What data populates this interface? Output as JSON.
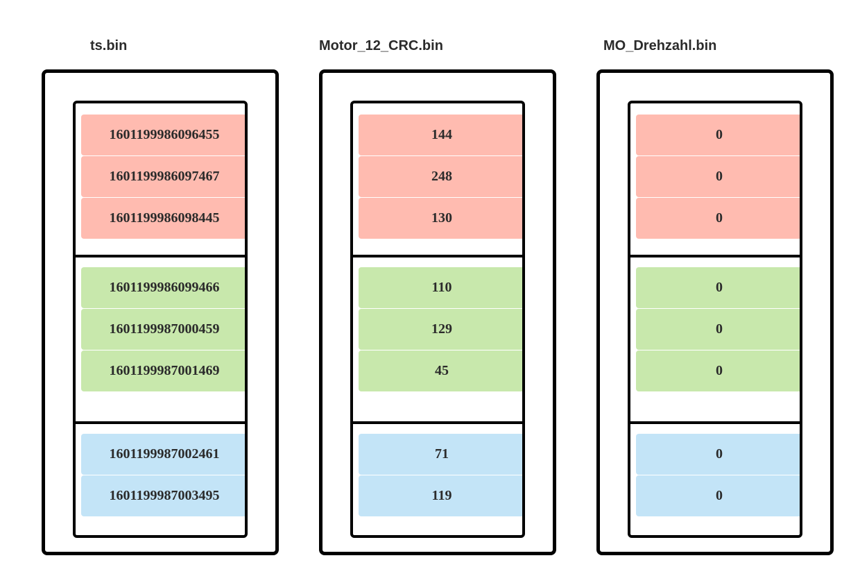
{
  "colors": {
    "red": "#ffbbb0",
    "green": "#c8e8ac",
    "blue": "#c3e4f7"
  },
  "files": [
    {
      "name": "ts.bin",
      "groups": [
        [
          "1601199986096455",
          "1601199986097467",
          "1601199986098445"
        ],
        [
          "1601199986099466",
          "1601199987000459",
          "1601199987001469"
        ],
        [
          "1601199987002461",
          "1601199987003495"
        ]
      ]
    },
    {
      "name": "Motor_12_CRC.bin",
      "groups": [
        [
          "144",
          "248",
          "130"
        ],
        [
          "110",
          "129",
          "45"
        ],
        [
          "71",
          "119"
        ]
      ]
    },
    {
      "name": "MO_Drehzahl.bin",
      "groups": [
        [
          "0",
          "0",
          "0"
        ],
        [
          "0",
          "0",
          "0"
        ],
        [
          "0",
          "0"
        ]
      ]
    }
  ]
}
